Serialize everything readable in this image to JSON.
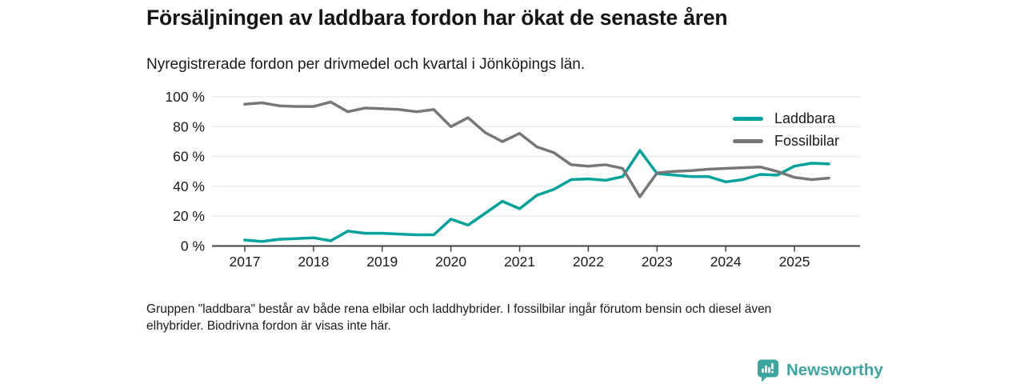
{
  "chart_data": {
    "type": "line",
    "title": "Försäljningen av laddbara fordon har ökat de senaste åren",
    "subtitle": "Nyregistrerade fordon per drivmedel och kvartal i Jönköpings län.",
    "x_unit": "quarter",
    "x_quarters": [
      "2017-Q1",
      "2017-Q2",
      "2017-Q3",
      "2017-Q4",
      "2018-Q1",
      "2018-Q2",
      "2018-Q3",
      "2018-Q4",
      "2019-Q1",
      "2019-Q2",
      "2019-Q3",
      "2019-Q4",
      "2020-Q1",
      "2020-Q2",
      "2020-Q3",
      "2020-Q4",
      "2021-Q1",
      "2021-Q2",
      "2021-Q3",
      "2021-Q4",
      "2022-Q1",
      "2022-Q2",
      "2022-Q3",
      "2022-Q4",
      "2023-Q1",
      "2023-Q2",
      "2023-Q3",
      "2023-Q4",
      "2024-Q1",
      "2024-Q2",
      "2024-Q3",
      "2024-Q4",
      "2025-Q1",
      "2025-Q2",
      "2025-Q3"
    ],
    "x_tick_labels": [
      "2017",
      "2018",
      "2019",
      "2020",
      "2021",
      "2022",
      "2023",
      "2024",
      "2025"
    ],
    "y_ticks": [
      {
        "value": 0,
        "label": "0 %"
      },
      {
        "value": 20,
        "label": "20 %"
      },
      {
        "value": 40,
        "label": "40 %"
      },
      {
        "value": 60,
        "label": "60 %"
      },
      {
        "value": 80,
        "label": "80 %"
      },
      {
        "value": 100,
        "label": "100 %"
      }
    ],
    "ylim": [
      0,
      100
    ],
    "grid": true,
    "legend_position": "top-right",
    "series": [
      {
        "name": "Laddbara",
        "color": "#00a39b",
        "values": [
          4,
          3,
          4.5,
          5,
          5.5,
          3.5,
          10,
          8.5,
          8.5,
          8,
          7.5,
          7.5,
          18,
          14,
          22,
          30,
          25,
          34,
          38,
          44.5,
          45,
          44,
          46.5,
          64,
          48.5,
          47.5,
          46.5,
          46.5,
          43,
          44.5,
          48,
          47.5,
          53.5,
          55.5,
          55
        ]
      },
      {
        "name": "Fossilbilar",
        "color": "#76777b",
        "values": [
          95,
          96,
          94,
          93.5,
          93.5,
          96.5,
          90,
          92.5,
          92,
          91.5,
          90,
          91.5,
          80,
          86,
          76,
          70,
          75.5,
          66.5,
          62.5,
          54.5,
          53.5,
          54.5,
          52,
          33,
          49,
          50,
          50.5,
          51.5,
          52,
          52.5,
          53,
          50,
          46,
          44.5,
          45.5
        ]
      }
    ],
    "axis_color": "#404040",
    "grid_color": "#e2e2e2"
  },
  "footnote": {
    "text": "Gruppen \"laddbara\" består av både rena elbilar och laddhybrider. I fossilbilar ingår förutom bensin och diesel även\nelhybrider. Biodrivna fordon är visas inte här."
  },
  "logo": {
    "text": "Newsworthy",
    "color": "#3aa69f"
  }
}
